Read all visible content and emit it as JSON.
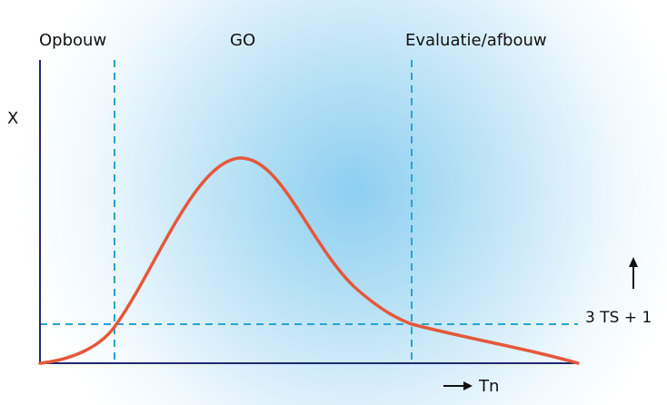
{
  "labels": {
    "phase_build": "Opbouw",
    "phase_go": "GO",
    "phase_eval": "Evaluatie/afbouw",
    "y_axis": "X",
    "x_axis": "Tn",
    "threshold": "3 TS + 1"
  },
  "colors": {
    "curve": "#e4583b",
    "axis": "#1f2a6e",
    "dashed": "#2aa3cf",
    "glow_center": "#8ccff0",
    "text": "#111111"
  },
  "icons": {
    "x_arrow": "right-arrow-icon",
    "threshold_arrow": "up-arrow-icon"
  }
}
